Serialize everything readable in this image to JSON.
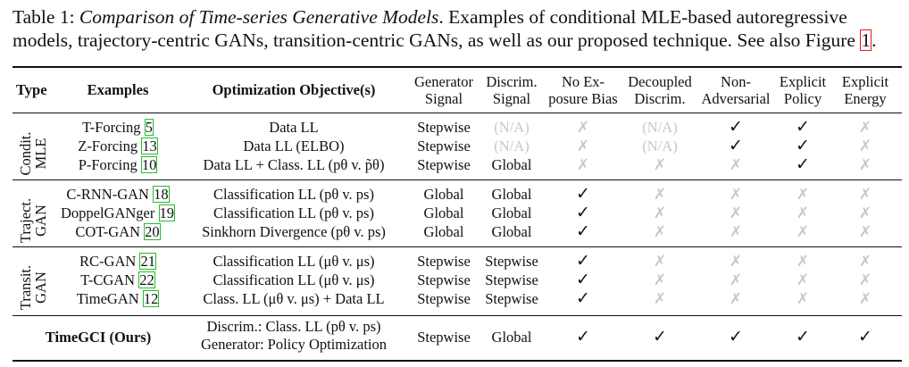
{
  "caption": {
    "line1_prefix": "Table 1: ",
    "title": "Comparison of Time-series Generative Models",
    "line1_rest": ". Examples of conditional MLE-based autoregressive",
    "line2_text": "models, trajectory-centric GANs, transition-centric GANs, as well as our proposed technique. See also Figure ",
    "figure_ref": "1",
    "line2_end": "."
  },
  "headers": {
    "type": "Type",
    "examples": "Examples",
    "objective": "Optimization Objective(s)",
    "gen_signal": [
      "Generator",
      "Signal"
    ],
    "disc_signal": [
      "Discrim.",
      "Signal"
    ],
    "no_exposure": [
      "No Ex-",
      "posure Bias"
    ],
    "decoupled": [
      "Decoupled",
      "Discrim."
    ],
    "non_adv": [
      "Non-",
      "Adversarial"
    ],
    "explicit_policy": [
      "Explicit",
      "Policy"
    ],
    "explicit_energy": [
      "Explicit",
      "Energy"
    ]
  },
  "groups": [
    {
      "label": [
        "Condit.",
        "MLE"
      ],
      "rows": [
        {
          "example": "T-Forcing ",
          "ref": "5",
          "ref_end": "",
          "objective": "Data LL",
          "gen": "Stepwise",
          "disc": "(N/A)",
          "disc_grey": true,
          "marks": [
            "cross",
            "na",
            "check",
            "check",
            "cross"
          ]
        },
        {
          "example": "Z-Forcing ",
          "ref": "13",
          "ref_end": "",
          "objective": "Data LL (ELBO)",
          "gen": "Stepwise",
          "disc": "(N/A)",
          "disc_grey": true,
          "marks": [
            "cross",
            "na",
            "check",
            "check",
            "cross"
          ]
        },
        {
          "example": "P-Forcing ",
          "ref": "10",
          "ref_end": "",
          "objective": "Data LL + Class. LL (pθ v. p̃θ)",
          "gen": "Stepwise",
          "disc": "Global",
          "disc_grey": false,
          "marks": [
            "cross",
            "cross",
            "cross",
            "check",
            "cross"
          ]
        }
      ]
    },
    {
      "label": [
        "Traject.",
        "GAN"
      ],
      "rows": [
        {
          "example": "C-RNN-GAN ",
          "ref": "18",
          "ref_end": "",
          "objective": "Classification LL (pθ v. ps)",
          "gen": "Global",
          "disc": "Global",
          "disc_grey": false,
          "marks": [
            "check",
            "cross",
            "cross",
            "cross",
            "cross"
          ]
        },
        {
          "example": "DoppelGANger ",
          "ref": "19",
          "ref_end": "",
          "objective": "Classification LL (pθ v. ps)",
          "gen": "Global",
          "disc": "Global",
          "disc_grey": false,
          "marks": [
            "check",
            "cross",
            "cross",
            "cross",
            "cross"
          ]
        },
        {
          "example": "COT-GAN ",
          "ref": "20",
          "ref_end": "",
          "objective": "Sinkhorn Divergence (pθ v. ps)",
          "gen": "Global",
          "disc": "Global",
          "disc_grey": false,
          "marks": [
            "check",
            "cross",
            "cross",
            "cross",
            "cross"
          ]
        }
      ]
    },
    {
      "label": [
        "Transit.",
        "GAN"
      ],
      "rows": [
        {
          "example": "RC-GAN ",
          "ref": "21",
          "ref_end": "",
          "objective": "Classification LL (μθ v. μs)",
          "gen": "Stepwise",
          "disc": "Stepwise",
          "disc_grey": false,
          "marks": [
            "check",
            "cross",
            "cross",
            "cross",
            "cross"
          ]
        },
        {
          "example": "T-CGAN ",
          "ref": "22",
          "ref_end": "",
          "objective": "Classification LL (μθ v. μs)",
          "gen": "Stepwise",
          "disc": "Stepwise",
          "disc_grey": false,
          "marks": [
            "check",
            "cross",
            "cross",
            "cross",
            "cross"
          ]
        },
        {
          "example": "TimeGAN ",
          "ref": "12",
          "ref_end": "",
          "objective": "Class. LL (μθ v. μs) + Data LL",
          "gen": "Stepwise",
          "disc": "Stepwise",
          "disc_grey": false,
          "marks": [
            "check",
            "cross",
            "cross",
            "cross",
            "cross"
          ]
        }
      ]
    }
  ],
  "ours": {
    "name": "TimeGCI (Ours)",
    "objective_line1": "Discrim.: Class. LL (pθ v. ps)",
    "objective_line2": "Generator: Policy Optimization",
    "gen": "Stepwise",
    "disc": "Global",
    "marks": [
      "check",
      "check",
      "check",
      "check",
      "check"
    ]
  },
  "symbols": {
    "check": "✓",
    "cross": "✗",
    "na": "(N/A)"
  }
}
